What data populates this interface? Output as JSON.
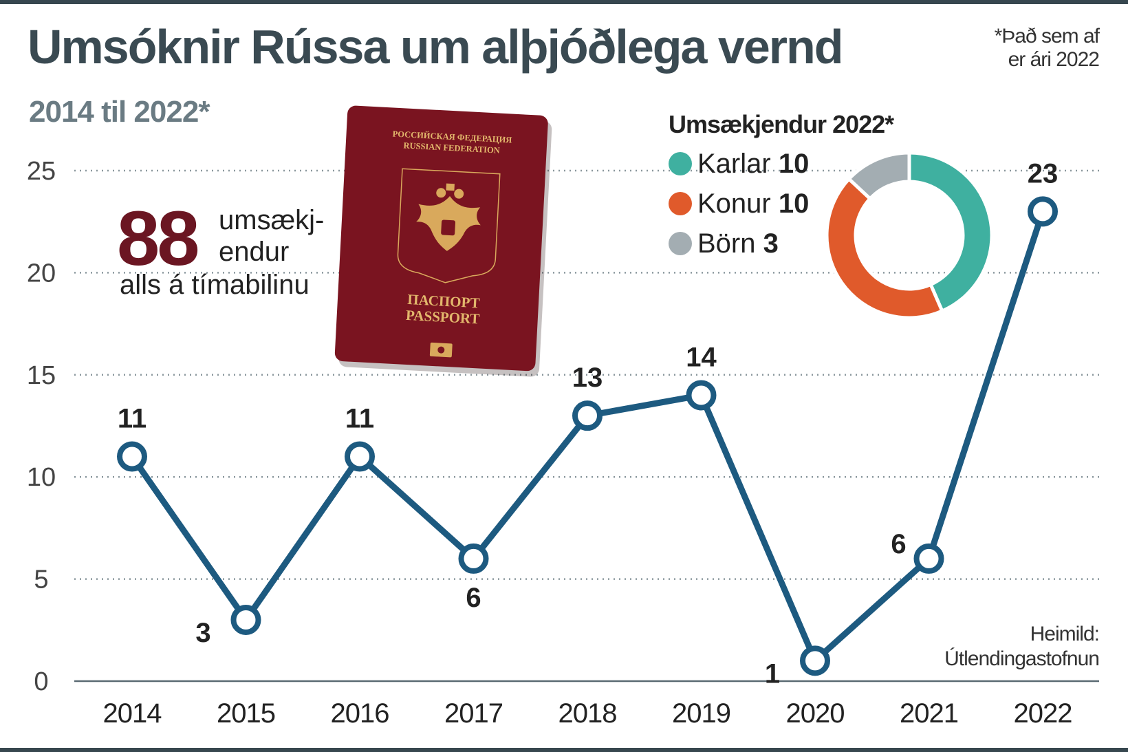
{
  "title": "Umsóknir Rússa um alþjóðlega vernd",
  "subtitle": "2014 til 2022*",
  "footnote": [
    "*Það sem af",
    "er ári 2022"
  ],
  "source": [
    "Heimild:",
    "Útlendingastofnun"
  ],
  "total": {
    "number": "88",
    "word1": "umsækj-",
    "word2": "endur",
    "word3": "alls á tímabilinu"
  },
  "passport": {
    "line1": "РОССИЙСКАЯ ФЕДЕРАЦИЯ",
    "line2": "RUSSIAN FEDERATION",
    "line3": "ПАСПОРТ",
    "line4": "PASSPORT"
  },
  "colors": {
    "line": "#1d5a80",
    "karlar": "#3fb0a0",
    "konur": "#e05a2b",
    "born": "#a3adb2",
    "passport": "#7a1420",
    "total": "#6b1622"
  },
  "chart_data": [
    {
      "type": "line",
      "title": "Umsóknir Rússa um alþjóðlega vernd",
      "subtitle": "2014 til 2022*",
      "categories": [
        "2014",
        "2015",
        "2016",
        "2017",
        "2018",
        "2019",
        "2020",
        "2021",
        "2022"
      ],
      "values": [
        11,
        3,
        11,
        6,
        13,
        14,
        1,
        6,
        23
      ],
      "data_labels": [
        "11",
        "3",
        "11",
        "6",
        "13",
        "14",
        "1",
        "6",
        "23"
      ],
      "ylim": [
        0,
        25
      ],
      "yticks": [
        "0",
        "5",
        "10",
        "15",
        "20",
        "25"
      ],
      "grid": true,
      "grid_style": "dotted"
    },
    {
      "type": "pie",
      "title": "Umsækjendur 2022*",
      "donut": true,
      "slices": [
        {
          "label": "Karlar",
          "value": 10,
          "value_text": "10"
        },
        {
          "label": "Konur",
          "value": 10,
          "value_text": "10"
        },
        {
          "label": "Börn",
          "value": 3,
          "value_text": "3"
        }
      ]
    }
  ]
}
